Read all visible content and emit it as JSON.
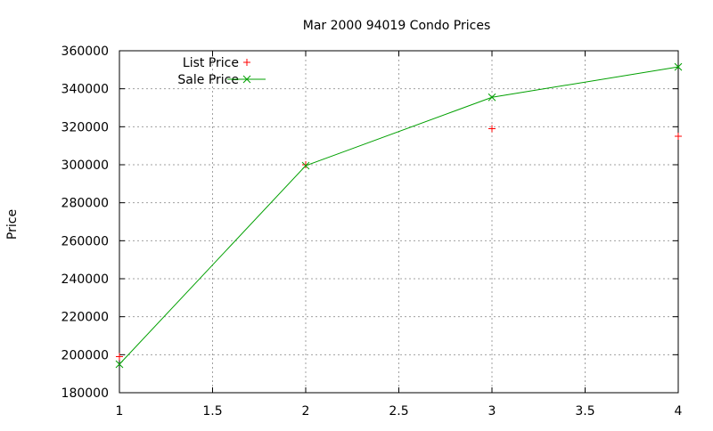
{
  "chart_data": {
    "type": "line",
    "title": "Mar 2000 94019 Condo Prices",
    "xlabel": "",
    "ylabel": "Price",
    "xlim": [
      1,
      4
    ],
    "ylim": [
      180000,
      360000
    ],
    "x_ticks": [
      1,
      1.5,
      2,
      2.5,
      3,
      3.5,
      4
    ],
    "x_tick_labels": [
      "1",
      "1.5",
      "2",
      "2.5",
      "3",
      "3.5",
      "4"
    ],
    "y_ticks": [
      180000,
      200000,
      220000,
      240000,
      260000,
      280000,
      300000,
      320000,
      340000,
      360000
    ],
    "y_tick_labels": [
      "180000",
      "200000",
      "220000",
      "240000",
      "260000",
      "280000",
      "300000",
      "320000",
      "340000",
      "360000"
    ],
    "grid": true,
    "legend_position": "top-left",
    "series": [
      {
        "name": "List Price",
        "style": "points",
        "marker": "plus",
        "color": "#ff0000",
        "x": [
          1,
          2,
          3,
          4
        ],
        "y": [
          199000,
          300000,
          319000,
          315000
        ]
      },
      {
        "name": "Sale Price",
        "style": "linespoints",
        "marker": "cross",
        "color": "#00a000",
        "x": [
          1,
          2,
          3,
          4
        ],
        "y": [
          195000,
          299500,
          335500,
          351500
        ]
      }
    ]
  }
}
